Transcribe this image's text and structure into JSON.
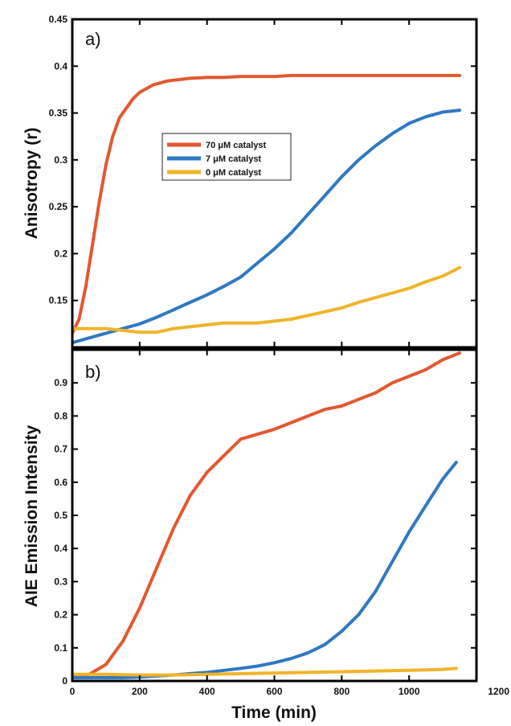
{
  "chart_data": [
    {
      "type": "line",
      "panel_label": "a)",
      "xlabel": "",
      "ylabel": "Anisotropy (r)",
      "xlim": [
        0,
        1200
      ],
      "ylim": [
        0.1,
        0.45
      ],
      "yticks": [
        "0.15",
        "0.2",
        "0.25",
        "0.3",
        "0.35",
        "0.4",
        "0.45"
      ],
      "legend": "upper-left-inside",
      "series": [
        {
          "name": "70 μM catalyst",
          "color": "#e4572e",
          "x": [
            0,
            20,
            40,
            60,
            80,
            100,
            120,
            140,
            160,
            180,
            200,
            220,
            240,
            260,
            280,
            300,
            350,
            400,
            450,
            500,
            550,
            600,
            650,
            700,
            750,
            800,
            850,
            900,
            950,
            1000,
            1050,
            1100,
            1150
          ],
          "y": [
            0.115,
            0.13,
            0.165,
            0.21,
            0.255,
            0.295,
            0.325,
            0.345,
            0.355,
            0.365,
            0.372,
            0.376,
            0.38,
            0.382,
            0.384,
            0.385,
            0.387,
            0.388,
            0.388,
            0.389,
            0.389,
            0.389,
            0.39,
            0.39,
            0.39,
            0.39,
            0.39,
            0.39,
            0.39,
            0.39,
            0.39,
            0.39,
            0.39
          ]
        },
        {
          "name": "7 μM catalyst",
          "color": "#2f78c2",
          "x": [
            0,
            50,
            100,
            150,
            200,
            250,
            300,
            350,
            400,
            450,
            500,
            550,
            600,
            650,
            700,
            750,
            800,
            850,
            900,
            950,
            1000,
            1050,
            1100,
            1150
          ],
          "y": [
            0.105,
            0.11,
            0.115,
            0.12,
            0.125,
            0.132,
            0.14,
            0.148,
            0.156,
            0.165,
            0.175,
            0.19,
            0.205,
            0.222,
            0.242,
            0.262,
            0.282,
            0.3,
            0.315,
            0.328,
            0.339,
            0.346,
            0.351,
            0.353
          ]
        },
        {
          "name": "0 μM catalyst",
          "color": "#f0b429",
          "x": [
            0,
            50,
            100,
            150,
            200,
            250,
            300,
            350,
            400,
            450,
            500,
            550,
            600,
            650,
            700,
            750,
            800,
            850,
            900,
            950,
            1000,
            1050,
            1100,
            1150
          ],
          "y": [
            0.12,
            0.12,
            0.12,
            0.118,
            0.116,
            0.116,
            0.12,
            0.122,
            0.124,
            0.126,
            0.126,
            0.126,
            0.128,
            0.13,
            0.134,
            0.138,
            0.142,
            0.148,
            0.153,
            0.158,
            0.163,
            0.17,
            0.176,
            0.185
          ]
        }
      ]
    },
    {
      "type": "line",
      "panel_label": "b)",
      "xlabel": "Time (min)",
      "ylabel": "AIE Emission Intensity",
      "xlim": [
        0,
        1200
      ],
      "ylim": [
        0,
        1.0
      ],
      "xticks": [
        "0",
        "200",
        "400",
        "600",
        "800",
        "1000",
        "1200"
      ],
      "yticks": [
        "0",
        "0.1",
        "0.2",
        "0.3",
        "0.4",
        "0.5",
        "0.6",
        "0.7",
        "0.8",
        "0.9"
      ],
      "series": [
        {
          "name": "70 μM catalyst",
          "color": "#e4572e",
          "x": [
            0,
            50,
            100,
            150,
            200,
            250,
            300,
            350,
            400,
            450,
            500,
            550,
            600,
            650,
            700,
            750,
            800,
            850,
            900,
            950,
            1000,
            1050,
            1100,
            1150
          ],
          "y": [
            0.01,
            0.02,
            0.05,
            0.12,
            0.22,
            0.34,
            0.46,
            0.56,
            0.63,
            0.68,
            0.73,
            0.745,
            0.76,
            0.78,
            0.8,
            0.82,
            0.83,
            0.85,
            0.87,
            0.9,
            0.92,
            0.94,
            0.97,
            0.99
          ]
        },
        {
          "name": "7 μM catalyst",
          "color": "#2f78c2",
          "x": [
            0,
            50,
            100,
            150,
            200,
            250,
            300,
            350,
            400,
            450,
            500,
            550,
            600,
            650,
            700,
            750,
            800,
            850,
            900,
            950,
            1000,
            1050,
            1100,
            1140
          ],
          "y": [
            0.01,
            0.01,
            0.01,
            0.01,
            0.012,
            0.015,
            0.018,
            0.022,
            0.026,
            0.032,
            0.038,
            0.045,
            0.055,
            0.068,
            0.085,
            0.11,
            0.15,
            0.2,
            0.27,
            0.36,
            0.45,
            0.53,
            0.61,
            0.66
          ]
        },
        {
          "name": "0 μM catalyst",
          "color": "#f0b429",
          "x": [
            0,
            100,
            200,
            300,
            400,
            500,
            600,
            700,
            800,
            900,
            1000,
            1100,
            1140
          ],
          "y": [
            0.02,
            0.02,
            0.018,
            0.018,
            0.02,
            0.022,
            0.024,
            0.026,
            0.028,
            0.03,
            0.032,
            0.035,
            0.038
          ]
        }
      ]
    }
  ]
}
